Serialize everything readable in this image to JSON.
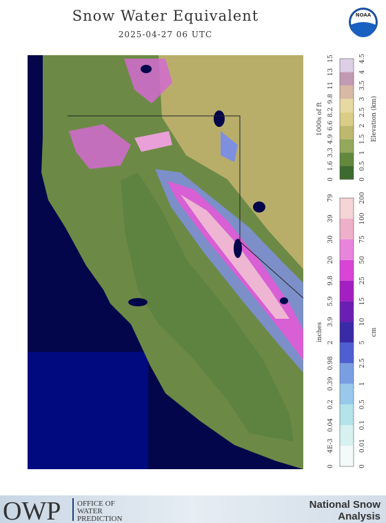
{
  "header": {
    "title": "Snow Water Equivalent",
    "subtitle": "2025-04-27 06 UTC",
    "logo": "NOAA"
  },
  "elevation_legend": {
    "left_title": "1000s of ft",
    "right_title": "Elevation (km)",
    "left_labels": [
      "0",
      "1.6",
      "3.3",
      "4.9",
      "6.6",
      "8.2",
      "9.8",
      "11",
      "13",
      "15"
    ],
    "right_labels": [
      "0",
      "0.5",
      "1",
      "1.5",
      "2",
      "2.5",
      "3",
      "3.5",
      "4",
      "4.5"
    ],
    "colors": [
      "#3d6a2e",
      "#62893c",
      "#93a85a",
      "#bdb86e",
      "#d9cc86",
      "#e6d9a2",
      "#d8b9a6",
      "#c39ab4",
      "#ddd0e6"
    ]
  },
  "swe_legend": {
    "left_title": "inches",
    "right_title": "cm",
    "left_labels": [
      "0",
      "4E-3",
      "0.04",
      "0.2",
      "0.39",
      "0.98",
      "2",
      "3.9",
      "5.9",
      "9.8",
      "20",
      "30",
      "39",
      "79"
    ],
    "right_labels": [
      "0",
      "0.01",
      "0.1",
      "0.5",
      "1",
      "2.5",
      "5",
      "10",
      "15",
      "25",
      "50",
      "75",
      "100",
      "200"
    ],
    "colors": [
      "#f4fafa",
      "#d7f0f0",
      "#b4e2e8",
      "#98c8ea",
      "#7a9ee2",
      "#4f5fd0",
      "#3a2aa6",
      "#6a1fb2",
      "#a41fc2",
      "#d844d6",
      "#e884dc",
      "#eeb0c8",
      "#f4d4d4"
    ]
  },
  "footer": {
    "logo": "OWP",
    "office": [
      "OFFICE OF",
      "WATER",
      "PREDICTION"
    ],
    "product": [
      "National Snow",
      "Analysis"
    ]
  }
}
